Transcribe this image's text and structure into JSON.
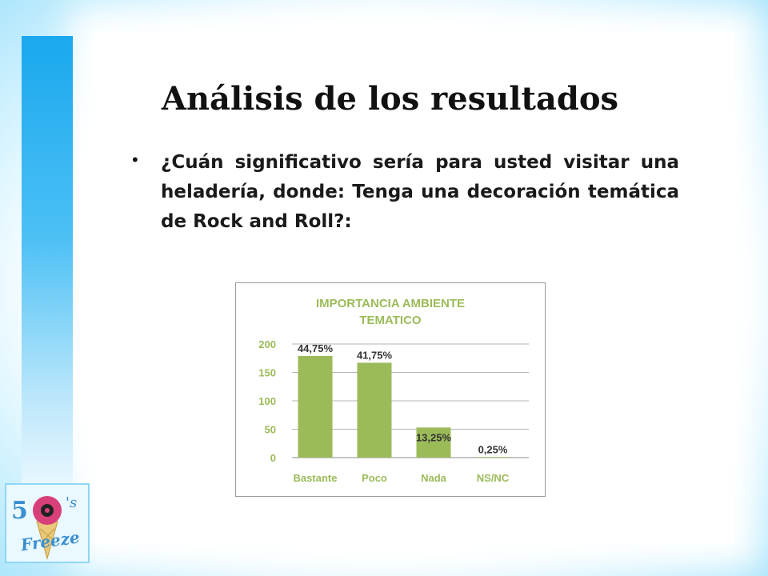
{
  "slide": {
    "title": "Análisis de los resultados",
    "question": "¿Cuán significativo sería para usted visitar una heladería, donde: Tenga una decoración temática de Rock and Roll?:",
    "bullet": "•"
  },
  "logo": {
    "label": "50's Freeze"
  },
  "colors": {
    "bar": "#9bbb59",
    "title_chart": "#9bbb59",
    "axis_text": "#9bbb59",
    "side_bar": "#29aef0"
  },
  "chart_data": {
    "type": "bar",
    "title": "IMPORTANCIA AMBIENTE TEMATICO",
    "categories": [
      "Bastante",
      "Poco",
      "Nada",
      "NS/NC"
    ],
    "values": [
      179,
      167,
      53,
      1
    ],
    "data_labels": [
      "44,75%",
      "41,75%",
      "13,25%",
      "0,25%"
    ],
    "yticks": [
      0,
      50,
      100,
      150,
      200
    ],
    "ylim": [
      0,
      200
    ],
    "grid": true,
    "legend": "none"
  }
}
